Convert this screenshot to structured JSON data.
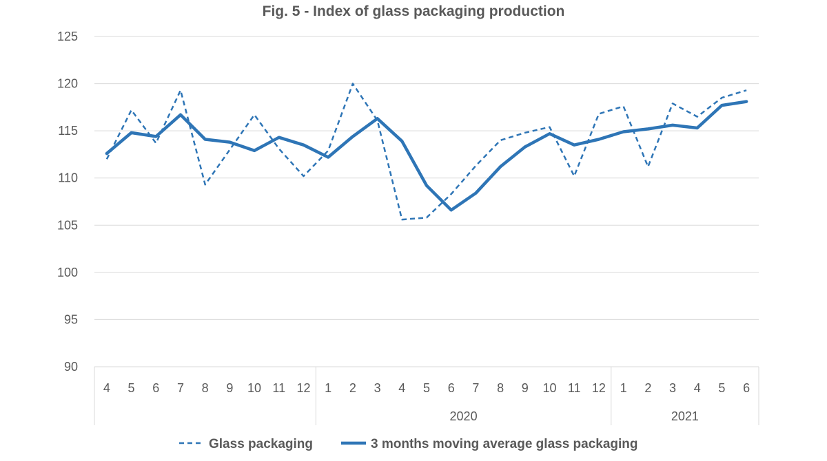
{
  "chart_data": {
    "type": "line",
    "title": "Fig. 5 - Index of glass packaging production",
    "x": [
      "4",
      "5",
      "6",
      "7",
      "8",
      "9",
      "10",
      "11",
      "12",
      "1",
      "2",
      "3",
      "4",
      "5",
      "6",
      "7",
      "8",
      "9",
      "10",
      "11",
      "12",
      "1",
      "2",
      "3",
      "4",
      "5",
      "6"
    ],
    "year_groups": [
      {
        "label": "",
        "from_index": 0,
        "to_index": 8
      },
      {
        "label": "2020",
        "from_index": 9,
        "to_index": 20
      },
      {
        "label": "2021",
        "from_index": 21,
        "to_index": 26
      }
    ],
    "ylim": [
      90,
      125
    ],
    "yticks": [
      "90",
      "95",
      "100",
      "105",
      "110",
      "115",
      "120",
      "125"
    ],
    "grid": true,
    "legend_position": "bottom",
    "series": [
      {
        "name": "Glass packaging",
        "style": "dashed",
        "color": "#2E75B6",
        "values": [
          112.0,
          117.2,
          113.7,
          119.3,
          109.3,
          113.0,
          116.7,
          113.1,
          110.2,
          112.9,
          120.0,
          116.1,
          105.6,
          105.8,
          108.3,
          111.3,
          114.0,
          114.8,
          115.4,
          110.2,
          116.8,
          117.6,
          111.2,
          117.9,
          116.5,
          118.5,
          119.3
        ]
      },
      {
        "name": "3 months moving average glass packaging",
        "style": "solid",
        "color": "#2E75B6",
        "values": [
          112.6,
          114.8,
          114.4,
          116.7,
          114.1,
          113.8,
          112.9,
          114.3,
          113.5,
          112.2,
          114.4,
          116.3,
          113.9,
          109.2,
          106.6,
          108.4,
          111.2,
          113.3,
          114.7,
          113.5,
          114.1,
          114.9,
          115.2,
          115.6,
          115.3,
          117.7,
          118.1
        ]
      }
    ]
  }
}
